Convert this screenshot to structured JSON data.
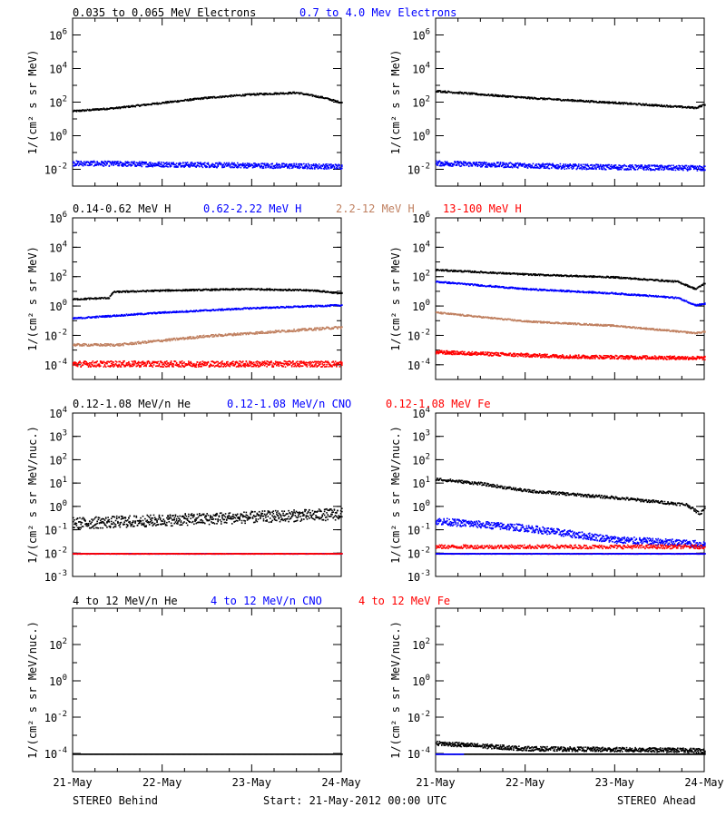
{
  "colors": {
    "black": "#000000",
    "blue": "#0000ff",
    "tan": "#c08060",
    "red": "#ff0000"
  },
  "footer": {
    "left": "STEREO Behind",
    "center": "Start: 21-May-2012 00:00 UTC",
    "right": "STEREO Ahead"
  },
  "x_ticks": [
    "21-May",
    "22-May",
    "23-May",
    "24-May"
  ],
  "chart_data": [
    {
      "type": "scatter",
      "row": 0,
      "col": 0,
      "ylabel": "1/(cm² s sr MeV)",
      "ylog_range": [
        -3,
        7
      ],
      "yticks": [
        {
          "base": "10",
          "exp": "6",
          "v": 6
        },
        {
          "base": "10",
          "exp": "4",
          "v": 4
        },
        {
          "base": "10",
          "exp": "2",
          "v": 2
        },
        {
          "base": "10",
          "exp": "0",
          "v": 0
        },
        {
          "base": "10",
          "exp": "-2",
          "v": -2
        }
      ],
      "x_range_days": [
        0,
        3
      ],
      "series": [
        {
          "name": "0.035 to 0.065 MeV Electrons",
          "color": "black",
          "log_points": [
            [
              0,
              1.5
            ],
            [
              0.5,
              1.7
            ],
            [
              1.0,
              2.0
            ],
            [
              1.5,
              2.3
            ],
            [
              2.0,
              2.5
            ],
            [
              2.5,
              2.6
            ],
            [
              2.8,
              2.3
            ],
            [
              3.0,
              2.0
            ]
          ],
          "scatter": 0.05
        },
        {
          "name": "0.7 to 4.0 Mev Electrons",
          "color": "blue",
          "log_points": [
            [
              0,
              -1.6
            ],
            [
              1.5,
              -1.7
            ],
            [
              3.0,
              -1.8
            ]
          ],
          "scatter": 0.15
        }
      ]
    },
    {
      "type": "scatter",
      "row": 0,
      "col": 1,
      "ylabel": "1/(cm² s sr MeV)",
      "ylog_range": [
        -3,
        7
      ],
      "yticks": [
        {
          "base": "10",
          "exp": "6",
          "v": 6
        },
        {
          "base": "10",
          "exp": "4",
          "v": 4
        },
        {
          "base": "10",
          "exp": "2",
          "v": 2
        },
        {
          "base": "10",
          "exp": "0",
          "v": 0
        },
        {
          "base": "10",
          "exp": "-2",
          "v": -2
        }
      ],
      "x_range_days": [
        0,
        3
      ],
      "series": [
        {
          "name": "",
          "color": "black",
          "log_points": [
            [
              0,
              2.7
            ],
            [
              1.0,
              2.3
            ],
            [
              2.0,
              2.0
            ],
            [
              2.9,
              1.7
            ],
            [
              3.0,
              1.9
            ]
          ],
          "scatter": 0.05
        },
        {
          "name": "",
          "color": "blue",
          "log_points": [
            [
              0,
              -1.6
            ],
            [
              1.5,
              -1.8
            ],
            [
              3.0,
              -1.9
            ]
          ],
          "scatter": 0.15
        }
      ]
    },
    {
      "type": "scatter",
      "row": 1,
      "col": 0,
      "ylabel": "1/(cm² s sr MeV)",
      "ylog_range": [
        -5,
        6
      ],
      "yticks": [
        {
          "base": "10",
          "exp": "6",
          "v": 6
        },
        {
          "base": "10",
          "exp": "4",
          "v": 4
        },
        {
          "base": "10",
          "exp": "2",
          "v": 2
        },
        {
          "base": "10",
          "exp": "0",
          "v": 0
        },
        {
          "base": "10",
          "exp": "-2",
          "v": -2
        },
        {
          "base": "10",
          "exp": "-4",
          "v": -4
        }
      ],
      "x_range_days": [
        0,
        3
      ],
      "series": [
        {
          "name": "0.14-0.62 MeV H",
          "color": "black",
          "log_points": [
            [
              0,
              0.5
            ],
            [
              0.4,
              0.6
            ],
            [
              0.45,
              1.0
            ],
            [
              1.0,
              1.1
            ],
            [
              2.0,
              1.2
            ],
            [
              2.7,
              1.1
            ],
            [
              3.0,
              0.9
            ]
          ],
          "scatter": 0.05
        },
        {
          "name": "0.62-2.22 MeV H",
          "color": "blue",
          "log_points": [
            [
              0,
              -0.8
            ],
            [
              1.0,
              -0.4
            ],
            [
              2.0,
              -0.1
            ],
            [
              3.0,
              0.1
            ]
          ],
          "scatter": 0.05
        },
        {
          "name": "2.2-12 MeV H",
          "color": "tan",
          "log_points": [
            [
              0,
              -2.6
            ],
            [
              0.5,
              -2.6
            ],
            [
              1.5,
              -2.0
            ],
            [
              3.0,
              -1.4
            ]
          ],
          "scatter": 0.08
        },
        {
          "name": "13-100 MeV H",
          "color": "red",
          "log_points": [
            [
              0,
              -3.9
            ],
            [
              3.0,
              -3.9
            ]
          ],
          "scatter": 0.2
        }
      ]
    },
    {
      "type": "scatter",
      "row": 1,
      "col": 1,
      "ylabel": "1/(cm² s sr MeV)",
      "ylog_range": [
        -5,
        6
      ],
      "yticks": [
        {
          "base": "10",
          "exp": "6",
          "v": 6
        },
        {
          "base": "10",
          "exp": "4",
          "v": 4
        },
        {
          "base": "10",
          "exp": "2",
          "v": 2
        },
        {
          "base": "10",
          "exp": "0",
          "v": 0
        },
        {
          "base": "10",
          "exp": "-2",
          "v": -2
        },
        {
          "base": "10",
          "exp": "-4",
          "v": -4
        }
      ],
      "x_range_days": [
        0,
        3
      ],
      "series": [
        {
          "name": "",
          "color": "black",
          "log_points": [
            [
              0,
              2.5
            ],
            [
              1.0,
              2.2
            ],
            [
              2.0,
              2.0
            ],
            [
              2.7,
              1.7
            ],
            [
              2.9,
              1.2
            ],
            [
              3.0,
              1.6
            ]
          ],
          "scatter": 0.05
        },
        {
          "name": "",
          "color": "blue",
          "log_points": [
            [
              0,
              1.7
            ],
            [
              1.0,
              1.2
            ],
            [
              2.0,
              0.9
            ],
            [
              2.7,
              0.6
            ],
            [
              2.9,
              0.1
            ],
            [
              3.0,
              0.2
            ]
          ],
          "scatter": 0.05
        },
        {
          "name": "",
          "color": "tan",
          "log_points": [
            [
              0,
              -0.4
            ],
            [
              1.0,
              -1.0
            ],
            [
              2.0,
              -1.3
            ],
            [
              2.9,
              -1.8
            ],
            [
              3.0,
              -1.7
            ]
          ],
          "scatter": 0.05
        },
        {
          "name": "",
          "color": "red",
          "log_points": [
            [
              0,
              -3.1
            ],
            [
              1.5,
              -3.4
            ],
            [
              3.0,
              -3.5
            ]
          ],
          "scatter": 0.12
        }
      ]
    },
    {
      "type": "scatter",
      "row": 2,
      "col": 0,
      "ylabel": "1/(cm² s sr MeV/nuc.)",
      "ylog_range": [
        -3,
        4
      ],
      "yticks": [
        {
          "base": "10",
          "exp": "4",
          "v": 4
        },
        {
          "base": "10",
          "exp": "3",
          "v": 3
        },
        {
          "base": "10",
          "exp": "2",
          "v": 2
        },
        {
          "base": "10",
          "exp": "1",
          "v": 1
        },
        {
          "base": "10",
          "exp": "0",
          "v": 0
        },
        {
          "base": "10",
          "exp": "-1",
          "v": -1
        },
        {
          "base": "10",
          "exp": "-2",
          "v": -2
        },
        {
          "base": "10",
          "exp": "-3",
          "v": -3
        }
      ],
      "x_range_days": [
        0,
        3
      ],
      "series": [
        {
          "name": "0.12-1.08 MeV/n He",
          "color": "black",
          "log_points": [
            [
              0,
              -0.7
            ],
            [
              1.5,
              -0.5
            ],
            [
              3.0,
              -0.3
            ]
          ],
          "scatter": 0.25
        },
        {
          "name": "0.12-1.08 MeV/n CNO",
          "color": "blue",
          "log_points": [
            [
              0,
              -2.0
            ],
            [
              3.0,
              -2.0
            ]
          ],
          "scatter": 0.01
        },
        {
          "name": "0.12-1.08 MeV Fe",
          "color": "red",
          "log_points": [
            [
              0,
              -2.0
            ],
            [
              3.0,
              -2.0
            ]
          ],
          "scatter": 0.01
        }
      ]
    },
    {
      "type": "scatter",
      "row": 2,
      "col": 1,
      "ylabel": "1/(cm² s sr MeV/nuc.)",
      "ylog_range": [
        -3,
        4
      ],
      "yticks": [
        {
          "base": "10",
          "exp": "4",
          "v": 4
        },
        {
          "base": "10",
          "exp": "3",
          "v": 3
        },
        {
          "base": "10",
          "exp": "2",
          "v": 2
        },
        {
          "base": "10",
          "exp": "1",
          "v": 1
        },
        {
          "base": "10",
          "exp": "0",
          "v": 0
        },
        {
          "base": "10",
          "exp": "-1",
          "v": -1
        },
        {
          "base": "10",
          "exp": "-2",
          "v": -2
        },
        {
          "base": "10",
          "exp": "-3",
          "v": -3
        }
      ],
      "x_range_days": [
        0,
        3
      ],
      "series": [
        {
          "name": "",
          "color": "black",
          "log_points": [
            [
              0,
              1.2
            ],
            [
              0.5,
              1.0
            ],
            [
              1.0,
              0.7
            ],
            [
              2.0,
              0.4
            ],
            [
              2.8,
              0.1
            ],
            [
              2.95,
              -0.3
            ],
            [
              3.0,
              0.0
            ]
          ],
          "scatter": 0.06
        },
        {
          "name": "",
          "color": "blue",
          "log_points": [
            [
              0,
              -0.6
            ],
            [
              1.0,
              -0.9
            ],
            [
              2.0,
              -1.4
            ],
            [
              3.0,
              -1.6
            ]
          ],
          "scatter": 0.15
        },
        {
          "name": "",
          "color": "red",
          "log_points": [
            [
              0,
              -1.7
            ],
            [
              3.0,
              -1.7
            ]
          ],
          "scatter": 0.08
        },
        {
          "name": "",
          "color": "red",
          "log_points": [
            [
              0,
              -2.0
            ],
            [
              3.0,
              -2.0
            ]
          ],
          "scatter": 0.01
        },
        {
          "name": "",
          "color": "blue",
          "log_points": [
            [
              0,
              -2.0
            ],
            [
              3.0,
              -2.0
            ]
          ],
          "scatter": 0.01
        }
      ]
    },
    {
      "type": "scatter",
      "row": 3,
      "col": 0,
      "ylabel": "1/(cm² s sr MeV/nuc.)",
      "ylog_range": [
        -5,
        4
      ],
      "yticks": [
        {
          "base": "10",
          "exp": "2",
          "v": 2
        },
        {
          "base": "10",
          "exp": "0",
          "v": 0
        },
        {
          "base": "10",
          "exp": "-2",
          "v": -2
        },
        {
          "base": "10",
          "exp": "-4",
          "v": -4
        }
      ],
      "x_range_days": [
        0,
        3
      ],
      "series": [
        {
          "name": "4 to 12 MeV/n He",
          "color": "black",
          "log_points": [
            [
              0,
              -4.0
            ],
            [
              3.0,
              -4.0
            ]
          ],
          "scatter": 0.0
        },
        {
          "name": "4 to 12 MeV/n CNO",
          "color": "blue",
          "log_points": [],
          "scatter": 0.0
        },
        {
          "name": "4 to 12 MeV Fe",
          "color": "red",
          "log_points": [],
          "scatter": 0.0
        }
      ]
    },
    {
      "type": "scatter",
      "row": 3,
      "col": 1,
      "ylabel": "1/(cm² s sr MeV/nuc.)",
      "ylog_range": [
        -5,
        4
      ],
      "yticks": [
        {
          "base": "10",
          "exp": "2",
          "v": 2
        },
        {
          "base": "10",
          "exp": "0",
          "v": 0
        },
        {
          "base": "10",
          "exp": "-2",
          "v": -2
        },
        {
          "base": "10",
          "exp": "-4",
          "v": -4
        }
      ],
      "x_range_days": [
        0,
        3
      ],
      "series": [
        {
          "name": "",
          "color": "black",
          "log_points": [
            [
              0,
              -3.4
            ],
            [
              1.0,
              -3.7
            ],
            [
              3.0,
              -3.8
            ]
          ],
          "scatter": 0.12
        },
        {
          "name": "",
          "color": "black",
          "log_points": [
            [
              0,
              -4.0
            ],
            [
              3.0,
              -4.0
            ]
          ],
          "scatter": 0.0
        },
        {
          "name": "",
          "color": "blue",
          "log_points": [
            [
              0,
              -4.0
            ],
            [
              0.3,
              -4.0
            ]
          ],
          "scatter": 0.0
        }
      ]
    }
  ]
}
